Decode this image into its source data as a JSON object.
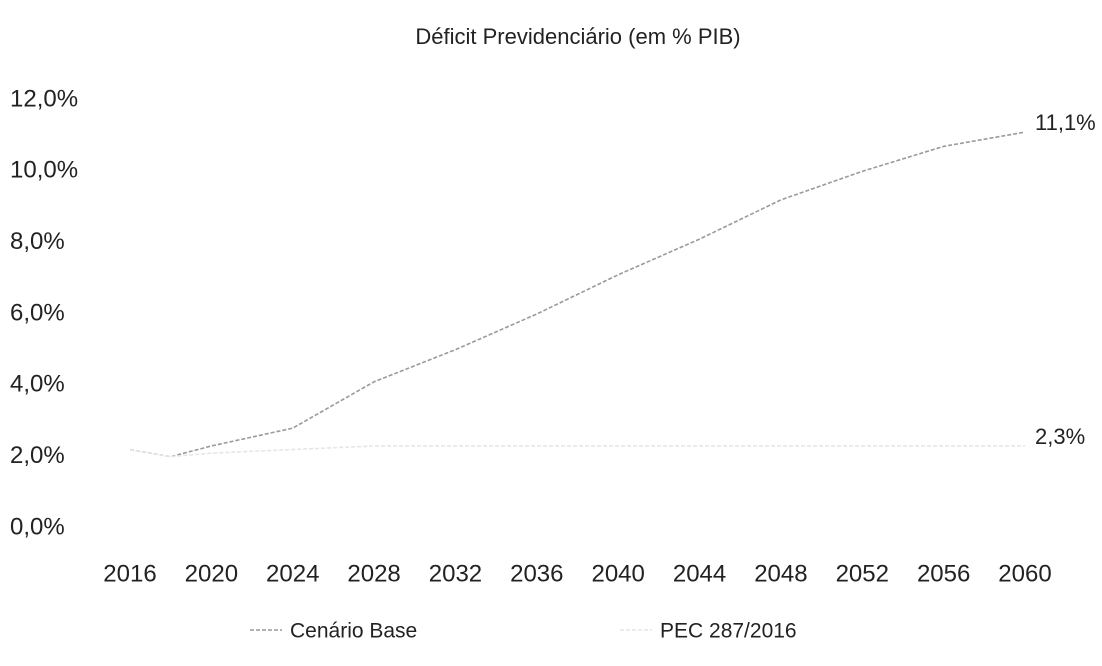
{
  "chart_data": {
    "type": "line",
    "title": "Déficit Previdenciário (em % PIB)",
    "x": [
      2016,
      2018,
      2020,
      2024,
      2028,
      2032,
      2036,
      2040,
      2044,
      2048,
      2052,
      2056,
      2060
    ],
    "series": [
      {
        "name": "Cenário Base",
        "color": "#9a9a9a",
        "values": [
          2.2,
          2.0,
          2.3,
          2.8,
          4.1,
          5.0,
          6.0,
          7.1,
          8.1,
          9.2,
          10.0,
          10.7,
          11.1
        ],
        "value_labels": [
          null,
          null,
          null,
          null,
          null,
          null,
          null,
          null,
          null,
          null,
          null,
          null,
          "11,1%"
        ]
      },
      {
        "name": "PEC 287/2016",
        "color": "#e6e6e6",
        "values": [
          2.2,
          2.0,
          2.1,
          2.2,
          2.3,
          2.3,
          2.3,
          2.3,
          2.3,
          2.3,
          2.3,
          2.3,
          2.3
        ],
        "value_labels": [
          null,
          null,
          null,
          null,
          null,
          null,
          null,
          null,
          null,
          null,
          null,
          null,
          "2,3%"
        ]
      }
    ],
    "xlim": [
      2016,
      2060
    ],
    "xticks": [
      2016,
      2020,
      2024,
      2028,
      2032,
      2036,
      2040,
      2044,
      2048,
      2052,
      2056,
      2060
    ],
    "ylim": [
      0,
      12
    ],
    "yticks": [
      {
        "value": 0,
        "label": "0,0%"
      },
      {
        "value": 2,
        "label": "2,0%"
      },
      {
        "value": 4,
        "label": "4,0%"
      },
      {
        "value": 6,
        "label": "6,0%"
      },
      {
        "value": 8,
        "label": "8,0%"
      },
      {
        "value": 10,
        "label": "10,0%"
      },
      {
        "value": 12,
        "label": "12,0%"
      }
    ],
    "grid": false,
    "legend": "bottom"
  }
}
